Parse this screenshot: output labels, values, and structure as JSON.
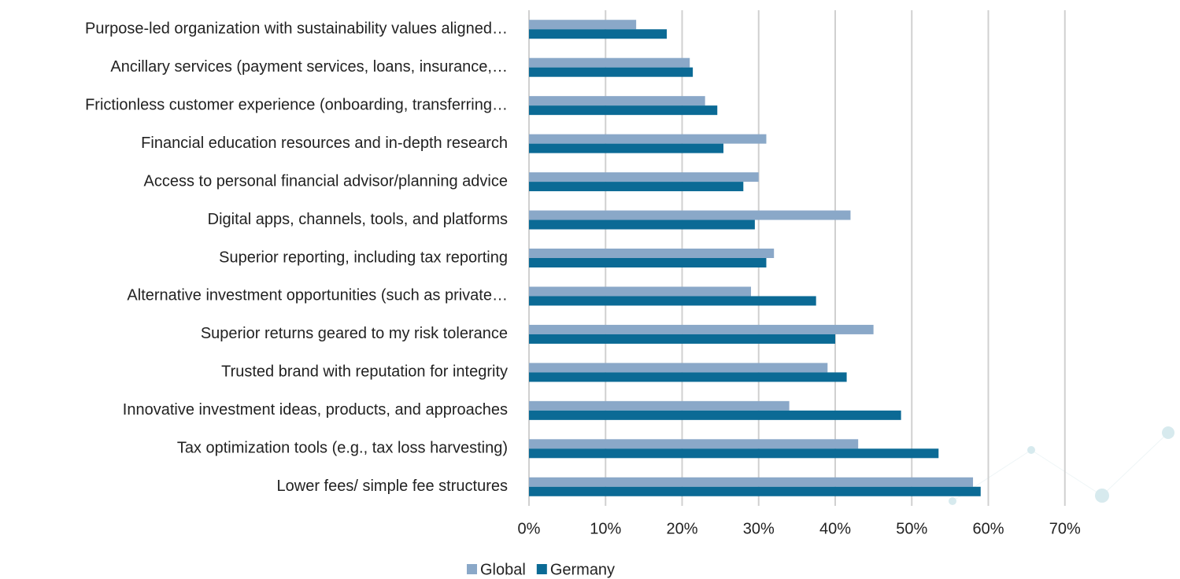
{
  "chart_data": {
    "type": "hbar",
    "categories": [
      "Purpose-led organization with sustainability values aligned…",
      "Ancillary services (payment services, loans, insurance,…",
      "Frictionless customer experience (onboarding, transferring…",
      "Financial education resources and in-depth research",
      "Access to personal financial advisor/planning advice",
      "Digital apps, channels, tools, and platforms",
      "Superior reporting, including tax reporting",
      "Alternative investment opportunities (such as private…",
      "Superior returns geared to my risk tolerance",
      "Trusted brand with reputation for integrity",
      "Innovative investment ideas, products, and approaches",
      "Tax optimization tools (e.g., tax loss harvesting)",
      "Lower fees/ simple fee structures"
    ],
    "series": [
      {
        "name": "Global",
        "color": "#8aa8c8",
        "values": [
          14,
          21,
          23,
          31,
          30,
          42,
          32,
          29,
          45,
          39,
          34,
          43,
          58
        ]
      },
      {
        "name": "Germany",
        "color": "#0b6a95",
        "values": [
          18,
          21.4,
          24.6,
          25.4,
          28,
          29.5,
          31,
          37.5,
          40,
          41.5,
          48.6,
          53.5,
          59
        ]
      }
    ],
    "xlim": [
      0,
      80
    ],
    "xticks": [
      {
        "value": 0,
        "label": "0%"
      },
      {
        "value": 10,
        "label": "10%"
      },
      {
        "value": 20,
        "label": "20%"
      },
      {
        "value": 30,
        "label": "30%"
      },
      {
        "value": 40,
        "label": "40%"
      },
      {
        "value": 50,
        "label": "50%"
      },
      {
        "value": 60,
        "label": "60%"
      },
      {
        "value": 70,
        "label": "70%"
      }
    ],
    "grid": true,
    "legend": "bottom"
  }
}
